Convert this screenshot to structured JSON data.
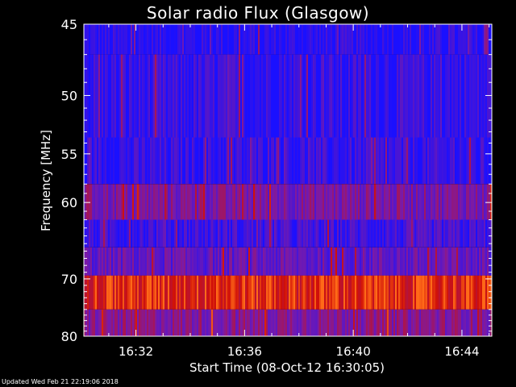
{
  "chart_data": {
    "type": "heatmap",
    "title": "Solar radio Flux (Glasgow)",
    "xlabel": "Start Time (08-Oct-12 16:30:05)",
    "ylabel": "Frequency [MHz]",
    "x_ticks": [
      "16:32",
      "16:36",
      "16:40",
      "16:44"
    ],
    "x_tick_minutes": [
      32,
      36,
      40,
      44
    ],
    "xlim_minutes": [
      30.0833,
      45.1
    ],
    "y_ticks": [
      45,
      50,
      55,
      60,
      70,
      80
    ],
    "y_scale": "reciprocal",
    "ylim": [
      45,
      80
    ],
    "colors": {
      "low": "#1a10ff",
      "mid": "#7a1aa8",
      "high": "#d01008",
      "peak": "#ff6a18"
    },
    "bands": [
      {
        "f_start": 45.0,
        "f_end": 47.0,
        "level": 0.05
      },
      {
        "f_start": 47.0,
        "f_end": 53.5,
        "level": 0.1
      },
      {
        "f_start": 53.5,
        "f_end": 58.0,
        "level": 0.1
      },
      {
        "f_start": 58.0,
        "f_end": 62.0,
        "level": 0.4
      },
      {
        "f_start": 62.0,
        "f_end": 65.5,
        "level": 0.15
      },
      {
        "f_start": 65.5,
        "f_end": 69.5,
        "level": 0.3
      },
      {
        "f_start": 69.5,
        "f_end": 75.0,
        "level": 0.85
      },
      {
        "f_start": 75.0,
        "f_end": 80.0,
        "level": 0.45
      }
    ]
  },
  "footer": {
    "updated": "Updated Wed Feb 21 22:19:06 2018"
  }
}
